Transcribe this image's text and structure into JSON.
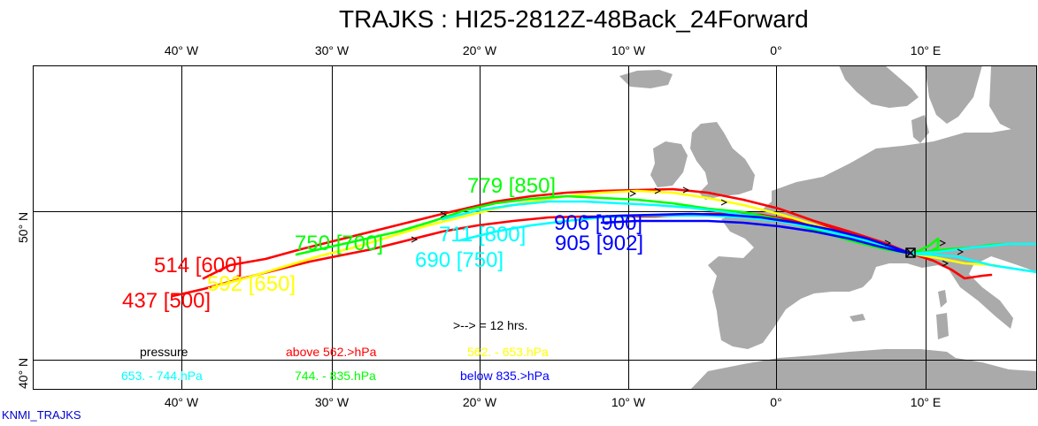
{
  "title": "TRAJKS : HI25-2812Z-48Back_24Forward",
  "credit": "KNMI_TRAJKS",
  "lon_labels": [
    "40° W",
    "30° W",
    "20° W",
    "10° W",
    "0°",
    "10° E"
  ],
  "lat_labels": [
    "50° N",
    "40° N"
  ],
  "arrow_note": ">--> = 12 hrs.",
  "legend": {
    "pressure": "pressure",
    "above": "above   562.>hPa",
    "r2": "562. -    653.hPa",
    "r3": "653. -    744.hPa",
    "r4": "744. -    835.hPa",
    "below": "below   835.>hPa"
  },
  "colors": {
    "red": "#ff0000",
    "yellow": "#ffff00",
    "cyan": "#00ffff",
    "green": "#00ff00",
    "blue": "#0000ff",
    "land": "#aaaaaa"
  },
  "trajectory_labels": [
    {
      "text": "779 [850]",
      "color": "green"
    },
    {
      "text": "750 [700]",
      "color": "green"
    },
    {
      "text": "514 [600]",
      "color": "red"
    },
    {
      "text": "592 [650]",
      "color": "yellow"
    },
    {
      "text": "437 [500]",
      "color": "red"
    },
    {
      "text": "711 [800]",
      "color": "cyan"
    },
    {
      "text": "690 [750]",
      "color": "cyan"
    },
    {
      "text": "906 [900]",
      "color": "blue"
    },
    {
      "text": "905 [902]",
      "color": "blue"
    }
  ]
}
